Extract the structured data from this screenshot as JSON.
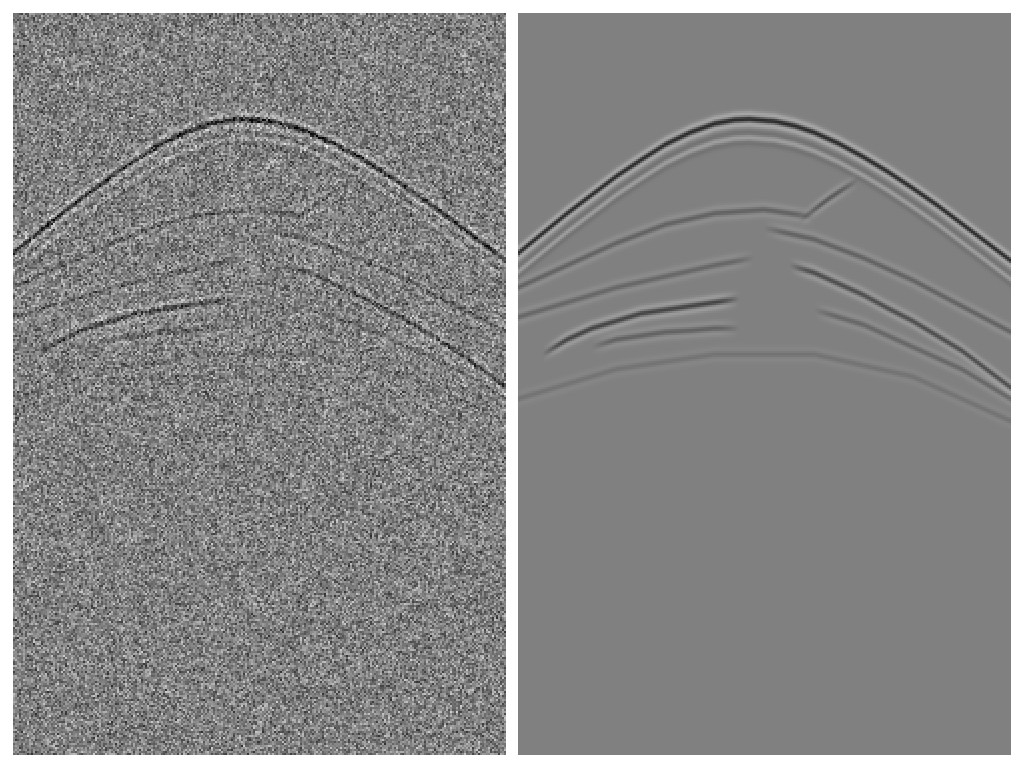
{
  "chart_data": [
    {
      "type": "heatmap",
      "tick_labels": false,
      "xlim": [
        0,
        100
      ],
      "ylim": [
        100,
        0
      ],
      "zlim": [
        -1.5,
        1.5
      ],
      "noise": 0.35,
      "events": [
        {
          "amplitude": 1.0,
          "x": [
            0,
            5,
            10,
            15,
            20,
            25,
            30,
            35,
            40,
            44,
            47,
            52,
            56,
            60,
            65,
            70,
            75,
            80,
            85,
            90,
            95,
            100
          ],
          "t": [
            32.4,
            29.7,
            27.0,
            24.5,
            22.0,
            19.8,
            17.7,
            16.1,
            14.9,
            14.4,
            14.3,
            14.6,
            15.2,
            16.1,
            17.6,
            19.4,
            21.4,
            23.6,
            25.9,
            28.4,
            30.9,
            33.4
          ]
        },
        {
          "amplitude": -0.35,
          "x": [
            0,
            5,
            10,
            15,
            20,
            25,
            30,
            35,
            40,
            44,
            47,
            52,
            56,
            60,
            65,
            70,
            75,
            80,
            85,
            90,
            95,
            100
          ],
          "t": [
            34.9,
            32.2,
            29.5,
            27.0,
            24.5,
            22.3,
            20.2,
            18.6,
            17.4,
            16.9,
            16.8,
            17.1,
            17.7,
            18.6,
            20.1,
            21.9,
            23.9,
            26.1,
            28.4,
            30.9,
            33.4,
            35.9
          ]
        },
        {
          "amplitude": 0.35,
          "x": [
            0,
            10,
            20,
            30,
            40,
            50,
            60
          ],
          "t": [
            37,
            34,
            31,
            28.5,
            27,
            26.5,
            27.5
          ]
        },
        {
          "amplitude": 0.3,
          "x": [
            0,
            10,
            20,
            30,
            40,
            48
          ],
          "t": [
            41,
            39,
            37,
            35.5,
            34,
            33
          ]
        },
        {
          "amplitude": 0.7,
          "x": [
            5,
            10,
            15,
            20,
            25,
            30,
            35,
            40,
            45
          ],
          "t": [
            46,
            44,
            42.5,
            41.5,
            40.5,
            40,
            39.5,
            39,
            38.5
          ]
        },
        {
          "amplitude": 0.35,
          "x": [
            15,
            20,
            25,
            30,
            35,
            40,
            45
          ],
          "t": [
            45,
            44,
            43.5,
            43,
            42.8,
            42.5,
            42.5
          ]
        },
        {
          "amplitude": 0.45,
          "x": [
            57,
            60,
            63,
            66,
            69
          ],
          "t": [
            28,
            26.5,
            25,
            23.7,
            22.5
          ]
        },
        {
          "amplitude": 0.6,
          "x": [
            55,
            60,
            65,
            70,
            75,
            80,
            85,
            90,
            95,
            100
          ],
          "t": [
            34,
            35,
            36.5,
            38,
            39.8,
            41.5,
            43.5,
            45.5,
            48,
            50.5
          ]
        },
        {
          "amplitude": 0.35,
          "x": [
            50,
            60,
            70,
            80,
            90,
            100
          ],
          "t": [
            29,
            30.5,
            33,
            36,
            39.5,
            43
          ]
        },
        {
          "amplitude": 0.15,
          "x": [
            0,
            20,
            40,
            60,
            80,
            100
          ],
          "t": [
            52,
            48,
            46,
            46,
            49,
            55
          ]
        },
        {
          "amplitude": 0.3,
          "x": [
            60,
            70,
            80,
            90,
            100
          ],
          "t": [
            40,
            42,
            45,
            48,
            52
          ]
        }
      ]
    },
    {
      "type": "heatmap",
      "tick_labels": false,
      "xlim": [
        0,
        100
      ],
      "ylim": [
        100,
        0
      ],
      "zlim": [
        -1.5,
        1.5
      ],
      "noise": 0,
      "events": [
        {
          "amplitude": 1.0,
          "x": [
            0,
            5,
            10,
            15,
            20,
            25,
            30,
            35,
            40,
            44,
            47,
            52,
            56,
            60,
            65,
            70,
            75,
            80,
            85,
            90,
            95,
            100
          ],
          "t": [
            32.4,
            29.7,
            27.0,
            24.5,
            22.0,
            19.8,
            17.7,
            16.1,
            14.9,
            14.4,
            14.3,
            14.6,
            15.2,
            16.1,
            17.6,
            19.4,
            21.4,
            23.6,
            25.9,
            28.4,
            30.9,
            33.4
          ]
        },
        {
          "amplitude": -0.35,
          "x": [
            0,
            5,
            10,
            15,
            20,
            25,
            30,
            35,
            40,
            44,
            47,
            52,
            56,
            60,
            65,
            70,
            75,
            80,
            85,
            90,
            95,
            100
          ],
          "t": [
            34.9,
            32.2,
            29.5,
            27.0,
            24.5,
            22.3,
            20.2,
            18.6,
            17.4,
            16.9,
            16.8,
            17.1,
            17.7,
            18.6,
            20.1,
            21.9,
            23.9,
            26.1,
            28.4,
            30.9,
            33.4,
            35.9
          ]
        },
        {
          "amplitude": 0.35,
          "x": [
            0,
            10,
            20,
            30,
            40,
            50,
            60
          ],
          "t": [
            37,
            34,
            31,
            28.5,
            27,
            26.5,
            27.5
          ]
        },
        {
          "amplitude": 0.3,
          "x": [
            0,
            10,
            20,
            30,
            40,
            48
          ],
          "t": [
            41,
            39,
            37,
            35.5,
            34,
            33
          ]
        },
        {
          "amplitude": 0.7,
          "x": [
            5,
            10,
            15,
            20,
            25,
            30,
            35,
            40,
            45
          ],
          "t": [
            46,
            44,
            42.5,
            41.5,
            40.5,
            40,
            39.5,
            39,
            38.5
          ]
        },
        {
          "amplitude": 0.35,
          "x": [
            15,
            20,
            25,
            30,
            35,
            40,
            45
          ],
          "t": [
            45,
            44,
            43.5,
            43,
            42.8,
            42.5,
            42.5
          ]
        },
        {
          "amplitude": 0.45,
          "x": [
            57,
            60,
            63,
            66,
            69
          ],
          "t": [
            28,
            26.5,
            25,
            23.7,
            22.5
          ]
        },
        {
          "amplitude": 0.6,
          "x": [
            55,
            60,
            65,
            70,
            75,
            80,
            85,
            90,
            95,
            100
          ],
          "t": [
            34,
            35,
            36.5,
            38,
            39.8,
            41.5,
            43.5,
            45.5,
            48,
            50.5
          ]
        },
        {
          "amplitude": 0.35,
          "x": [
            50,
            60,
            70,
            80,
            90,
            100
          ],
          "t": [
            29,
            30.5,
            33,
            36,
            39.5,
            43
          ]
        },
        {
          "amplitude": 0.15,
          "x": [
            0,
            20,
            40,
            60,
            80,
            100
          ],
          "t": [
            52,
            48,
            46,
            46,
            49,
            55
          ]
        },
        {
          "amplitude": 0.3,
          "x": [
            60,
            70,
            80,
            90,
            100
          ],
          "t": [
            40,
            42,
            45,
            48,
            52
          ]
        }
      ]
    }
  ]
}
